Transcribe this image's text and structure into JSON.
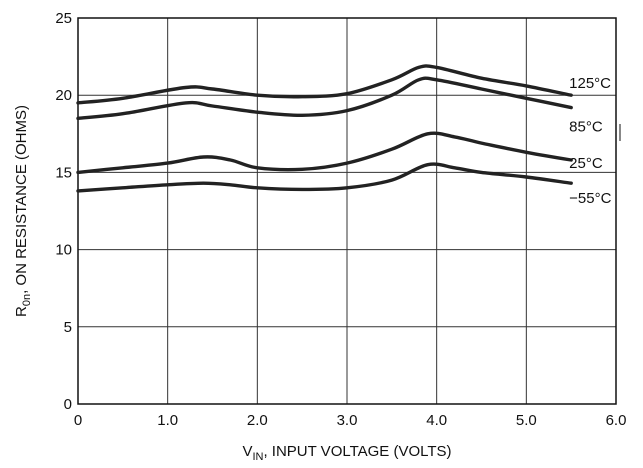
{
  "chart_data": {
    "type": "line",
    "title": "",
    "xlabel": {
      "main": "V",
      "sub": "IN",
      "rest": ", INPUT VOLTAGE (VOLTS)"
    },
    "ylabel": {
      "main": "R",
      "sub": "0n",
      "rest": ", ON RESISTANCE (OHMS)"
    },
    "xlim": [
      0,
      6
    ],
    "ylim": [
      0,
      25
    ],
    "xticks": [
      {
        "value": 0,
        "label": "0"
      },
      {
        "value": 1,
        "label": "1.0"
      },
      {
        "value": 2,
        "label": "2.0"
      },
      {
        "value": 3,
        "label": "3.0"
      },
      {
        "value": 4,
        "label": "4.0"
      },
      {
        "value": 5,
        "label": "5.0"
      },
      {
        "value": 6,
        "label": "6.0"
      }
    ],
    "yticks": [
      {
        "value": 0,
        "label": "0"
      },
      {
        "value": 5,
        "label": "5"
      },
      {
        "value": 10,
        "label": "10"
      },
      {
        "value": 15,
        "label": "15"
      },
      {
        "value": 20,
        "label": "20"
      },
      {
        "value": 25,
        "label": "25"
      }
    ],
    "grid": true,
    "series": [
      {
        "name": "125°C",
        "color": "#222222",
        "points": [
          [
            0,
            19.5
          ],
          [
            0.5,
            19.8
          ],
          [
            1.2,
            20.5
          ],
          [
            1.5,
            20.4
          ],
          [
            2.0,
            20.0
          ],
          [
            2.5,
            19.9
          ],
          [
            3.0,
            20.1
          ],
          [
            3.5,
            21.0
          ],
          [
            3.8,
            21.8
          ],
          [
            4.0,
            21.8
          ],
          [
            4.5,
            21.1
          ],
          [
            5.0,
            20.6
          ],
          [
            5.5,
            20.0
          ]
        ]
      },
      {
        "name": "85°C",
        "color": "#222222",
        "points": [
          [
            0,
            18.5
          ],
          [
            0.5,
            18.8
          ],
          [
            1.2,
            19.5
          ],
          [
            1.5,
            19.3
          ],
          [
            2.0,
            18.9
          ],
          [
            2.5,
            18.7
          ],
          [
            3.0,
            19.0
          ],
          [
            3.5,
            20.0
          ],
          [
            3.8,
            21.0
          ],
          [
            4.0,
            21.0
          ],
          [
            4.5,
            20.4
          ],
          [
            5.0,
            19.8
          ],
          [
            5.5,
            19.2
          ]
        ]
      },
      {
        "name": "25°C",
        "color": "#222222",
        "points": [
          [
            0,
            15.0
          ],
          [
            0.5,
            15.3
          ],
          [
            1.0,
            15.6
          ],
          [
            1.4,
            16.0
          ],
          [
            1.7,
            15.8
          ],
          [
            2.0,
            15.3
          ],
          [
            2.5,
            15.2
          ],
          [
            3.0,
            15.6
          ],
          [
            3.5,
            16.5
          ],
          [
            3.9,
            17.5
          ],
          [
            4.2,
            17.3
          ],
          [
            4.5,
            16.9
          ],
          [
            5.0,
            16.3
          ],
          [
            5.5,
            15.8
          ]
        ]
      },
      {
        "name": "−55°C",
        "color": "#222222",
        "points": [
          [
            0,
            13.8
          ],
          [
            0.5,
            14.0
          ],
          [
            1.0,
            14.2
          ],
          [
            1.4,
            14.3
          ],
          [
            1.7,
            14.2
          ],
          [
            2.0,
            14.0
          ],
          [
            2.5,
            13.9
          ],
          [
            3.0,
            14.0
          ],
          [
            3.5,
            14.5
          ],
          [
            3.9,
            15.5
          ],
          [
            4.2,
            15.3
          ],
          [
            4.5,
            15.0
          ],
          [
            5.0,
            14.7
          ],
          [
            5.5,
            14.3
          ]
        ]
      }
    ],
    "series_label_positions": "right-of-line-ends"
  }
}
